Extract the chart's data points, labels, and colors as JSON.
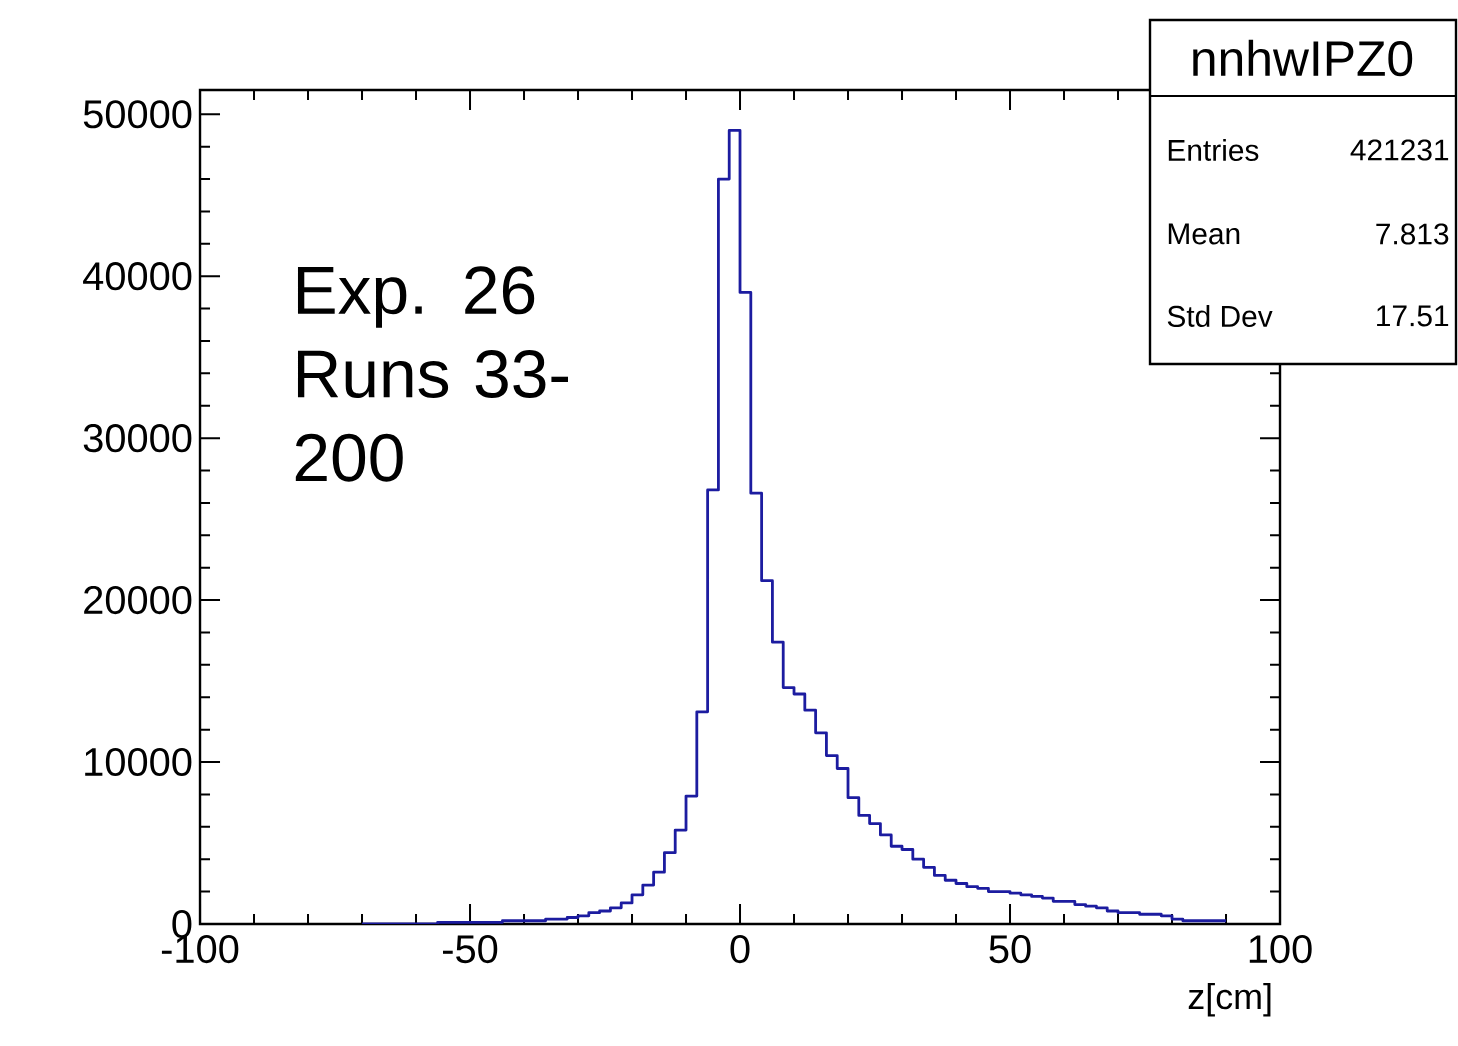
{
  "chart_data": {
    "type": "histogram",
    "bins": [
      -70,
      -68,
      -66,
      -64,
      -62,
      -60,
      -58,
      -56,
      -54,
      -52,
      -50,
      -48,
      -46,
      -44,
      -42,
      -40,
      -38,
      -36,
      -34,
      -32,
      -30,
      -28,
      -26,
      -24,
      -22,
      -20,
      -18,
      -16,
      -14,
      -12,
      -10,
      -8,
      -6,
      -4,
      -2,
      0,
      2,
      4,
      6,
      8,
      10,
      12,
      14,
      16,
      18,
      20,
      22,
      24,
      26,
      28,
      30,
      32,
      34,
      36,
      38,
      40,
      42,
      44,
      46,
      48,
      50,
      52,
      54,
      56,
      58,
      60,
      62,
      64,
      66,
      68,
      70,
      72,
      74,
      76,
      78,
      80,
      82,
      84,
      86,
      88,
      90
    ],
    "values": [
      0,
      0,
      0,
      0,
      0,
      0,
      0,
      100,
      100,
      100,
      100,
      100,
      100,
      200,
      200,
      200,
      200,
      300,
      300,
      400,
      500,
      700,
      800,
      1000,
      1300,
      1800,
      2400,
      3200,
      4400,
      5800,
      7900,
      13100,
      26800,
      46000,
      49000,
      39000,
      26600,
      21200,
      17400,
      14600,
      14200,
      13200,
      11800,
      10400,
      9600,
      7800,
      6700,
      6200,
      5500,
      4800,
      4600,
      4000,
      3500,
      3000,
      2700,
      2500,
      2300,
      2200,
      2000,
      2000,
      1900,
      1800,
      1700,
      1600,
      1400,
      1400,
      1200,
      1100,
      1000,
      800,
      700,
      700,
      600,
      600,
      500,
      300,
      200,
      200,
      200,
      200
    ],
    "color": "#1c1ca0",
    "xlim": [
      -100,
      100
    ],
    "ylim": [
      0,
      51500
    ],
    "xticks": [
      -100,
      -50,
      0,
      50,
      100
    ],
    "yticks": [
      0,
      10000,
      20000,
      30000,
      40000,
      50000
    ],
    "xlabel": "z[cm]",
    "annotations": [
      "Exp. 26 Runs 33-200",
      "nnhwIPZ0",
      "Entries",
      "421231",
      "Mean",
      "7.813",
      "Std Dev",
      "17.51"
    ]
  }
}
